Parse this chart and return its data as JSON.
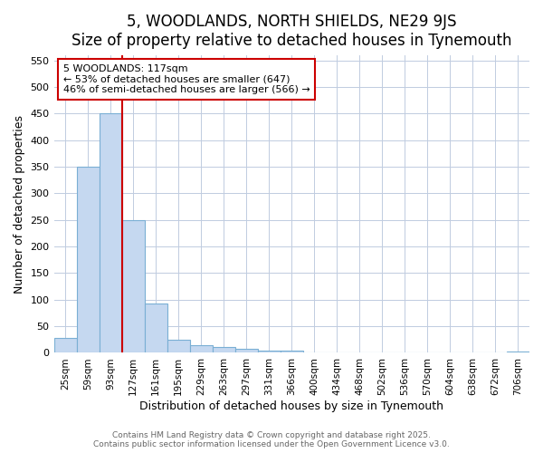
{
  "title": "5, WOODLANDS, NORTH SHIELDS, NE29 9JS",
  "subtitle": "Size of property relative to detached houses in Tynemouth",
  "xlabel": "Distribution of detached houses by size in Tynemouth",
  "ylabel": "Number of detached properties",
  "categories": [
    "25sqm",
    "59sqm",
    "93sqm",
    "127sqm",
    "161sqm",
    "195sqm",
    "229sqm",
    "263sqm",
    "297sqm",
    "331sqm",
    "366sqm",
    "400sqm",
    "434sqm",
    "468sqm",
    "502sqm",
    "536sqm",
    "570sqm",
    "604sqm",
    "638sqm",
    "672sqm",
    "706sqm"
  ],
  "values": [
    28,
    350,
    450,
    250,
    93,
    25,
    14,
    11,
    7,
    5,
    4,
    0,
    0,
    0,
    0,
    0,
    0,
    0,
    0,
    0,
    3
  ],
  "bar_color": "#c5d8f0",
  "bar_edgecolor": "#7aafd4",
  "red_line_x": 2.5,
  "annotation_line1": "5 WOODLANDS: 117sqm",
  "annotation_line2": "← 53% of detached houses are smaller (647)",
  "annotation_line3": "46% of semi-detached houses are larger (566) →",
  "ylim": [
    0,
    560
  ],
  "yticks": [
    0,
    50,
    100,
    150,
    200,
    250,
    300,
    350,
    400,
    450,
    500,
    550
  ],
  "footer_line1": "Contains HM Land Registry data © Crown copyright and database right 2025.",
  "footer_line2": "Contains public sector information licensed under the Open Government Licence v3.0.",
  "background_color": "#ffffff",
  "plot_background": "#ffffff",
  "title_fontsize": 12,
  "subtitle_fontsize": 10,
  "red_line_color": "#cc0000",
  "annotation_box_edgecolor": "#cc0000",
  "grid_color": "#c0cce0"
}
